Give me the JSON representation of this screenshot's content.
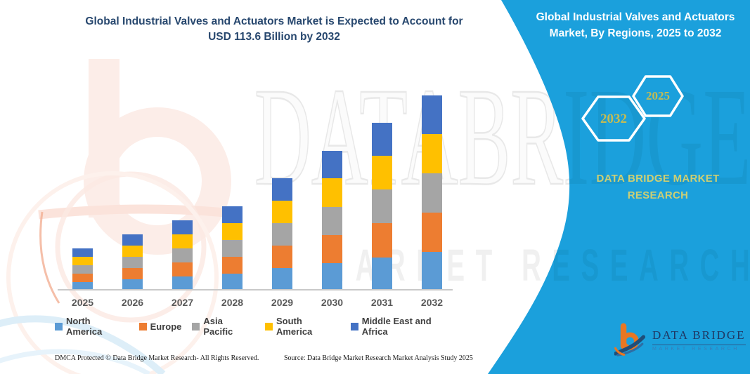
{
  "header": {
    "title_line1": "Global Industrial Valves and Actuators Market is Expected to Account for",
    "title_line2": "USD 113.6 Billion by 2032"
  },
  "panel": {
    "bg_color": "#1BA0DC",
    "title": "Global Industrial Valves and Actuators Market, By Regions, 2025 to 2032",
    "hexagons": {
      "back_year": "2032",
      "front_year": "2025"
    },
    "brand": "DATA BRIDGE MARKET RESEARCH",
    "accent_text_color": "#C5BC52"
  },
  "watermark": {
    "big_text": "DATABRIDGE",
    "sub_text": "MARKET RESEARCH"
  },
  "logo": {
    "name": "DATA BRIDGE",
    "subtitle": "MARKET RESEARCH"
  },
  "footer": {
    "left": "DMCA Protected © Data Bridge Market Research-  All Rights Reserved.",
    "source": "Source: Data Bridge Market Research  Market Analysis Study 2025"
  },
  "chart_data": {
    "type": "bar",
    "stacked": true,
    "title": "Global Industrial Valves and Actuators Market, By Regions, 2025 to 2032",
    "unit": "USD Billion",
    "categories": [
      "2025",
      "2026",
      "2027",
      "2028",
      "2029",
      "2030",
      "2031",
      "2032"
    ],
    "series": [
      {
        "name": "North America",
        "color": "#5B9BD5",
        "values": [
          4.7,
          6.3,
          7.9,
          9.5,
          12.7,
          15.8,
          19.0,
          22.1
        ]
      },
      {
        "name": "Europe",
        "color": "#ED7D31",
        "values": [
          4.9,
          6.5,
          8.2,
          9.9,
          13.2,
          16.4,
          19.8,
          23.0
        ]
      },
      {
        "name": "Asia Pacific",
        "color": "#A5A5A5",
        "values": [
          4.9,
          6.5,
          8.2,
          9.8,
          13.1,
          16.4,
          19.7,
          22.9
        ]
      },
      {
        "name": "South America",
        "color": "#FFC000",
        "values": [
          4.9,
          6.6,
          8.3,
          9.9,
          13.3,
          16.5,
          19.8,
          23.1
        ]
      },
      {
        "name": "Middle East and Africa",
        "color": "#4472C4",
        "values": [
          4.8,
          6.5,
          8.0,
          9.7,
          12.9,
          16.1,
          19.3,
          22.5
        ]
      }
    ],
    "totals_by_year": [
      24.2,
      32.4,
      40.6,
      48.8,
      65.2,
      81.2,
      97.6,
      113.6
    ],
    "ylim": [
      0,
      120
    ],
    "y_axis_visible": false,
    "grid": false,
    "legend_position": "bottom"
  }
}
